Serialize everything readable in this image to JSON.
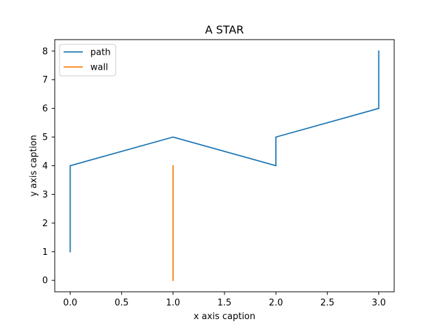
{
  "chart_data": {
    "type": "line",
    "title": "A STAR",
    "xlabel": "x axis caption",
    "ylabel": "y axis caption",
    "xlim": [
      -0.15,
      3.15
    ],
    "ylim": [
      -0.4,
      8.4
    ],
    "xticks": [
      0.0,
      0.5,
      1.0,
      1.5,
      2.0,
      2.5,
      3.0
    ],
    "xtick_labels": [
      "0.0",
      "0.5",
      "1.0",
      "1.5",
      "2.0",
      "2.5",
      "3.0"
    ],
    "yticks": [
      0,
      1,
      2,
      3,
      4,
      5,
      6,
      7,
      8
    ],
    "ytick_labels": [
      "0",
      "1",
      "2",
      "3",
      "4",
      "5",
      "6",
      "7",
      "8"
    ],
    "grid": false,
    "legend_position": "top-left",
    "series": [
      {
        "name": "path",
        "color": "#1f77b4",
        "x": [
          0,
          0,
          1,
          2,
          2,
          3,
          3
        ],
        "y": [
          1,
          4,
          5,
          4,
          5,
          6,
          8
        ]
      },
      {
        "name": "wall",
        "color": "#ff7f0e",
        "x": [
          1,
          1
        ],
        "y": [
          0,
          4
        ]
      }
    ]
  }
}
